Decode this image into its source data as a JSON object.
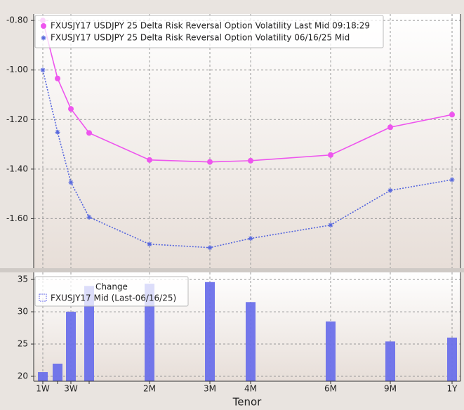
{
  "chart_data": [
    {
      "type": "line",
      "series": [
        {
          "name": "FXUSJY17 USDJPY 25 Delta Risk Reversal Option Volatility Last Mid 09:18:29",
          "color": "#ee55ee",
          "marker": "circle",
          "dotted": false,
          "values": [
            -0.8,
            -1.034,
            -1.157,
            -1.254,
            -1.363,
            -1.371,
            -1.366,
            -1.343,
            -1.231,
            -1.18
          ]
        },
        {
          "name": "FXUSJY17 USDJPY 25 Delta Risk Reversal Option Volatility 06/16/25 Mid",
          "color": "#5566dd",
          "marker": "star",
          "dotted": true,
          "values": [
            -1.0,
            -1.251,
            -1.454,
            -1.594,
            -1.703,
            -1.717,
            -1.68,
            -1.626,
            -1.486,
            -1.443
          ]
        }
      ],
      "ylim": [
        -1.8,
        -0.774
      ],
      "yticks": [
        {
          "value": -0.8,
          "label": "-0.80"
        },
        {
          "value": -1.0,
          "label": "-1.00"
        },
        {
          "value": -1.2,
          "label": "-1.20"
        },
        {
          "value": -1.4,
          "label": "-1.40"
        },
        {
          "value": -1.6,
          "label": "-1.60"
        }
      ],
      "grid": true
    },
    {
      "type": "bar",
      "categories": [
        "1W",
        null,
        "3W",
        null,
        "2M",
        "3M",
        "4M",
        "6M",
        "9M",
        "1Y"
      ],
      "x_label": "Tenor",
      "legend_title": "Change",
      "series": [
        {
          "name": "FXUSJY17 Mid (Last-06/16/25)",
          "color": "#6b70ea",
          "values": [
            20.65,
            21.96,
            30.0,
            34.0,
            34.35,
            34.6,
            31.5,
            28.5,
            25.4,
            26.0
          ]
        }
      ],
      "ylim": [
        19.24,
        36.1
      ],
      "yticks": [
        35,
        30,
        25,
        20
      ],
      "grid": true
    }
  ]
}
